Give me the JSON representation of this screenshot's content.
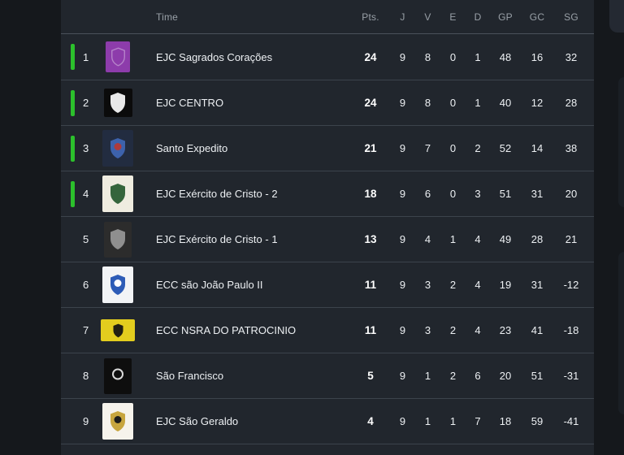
{
  "page": {
    "background": "#15181c"
  },
  "colors": {
    "card_bg": "#21262d",
    "divider": "#3c434b",
    "header_divider": "#4a515a",
    "header_text": "#99a0a7",
    "text": "#edf0f3",
    "promotion_bar": "#2cc02c",
    "corner_panel": "#242932"
  },
  "table": {
    "header": {
      "team_col_label": "Time",
      "stat_cols": [
        "Pts.",
        "J",
        "V",
        "E",
        "D",
        "GP",
        "GC",
        "SG"
      ]
    },
    "rows": [
      {
        "position": "1",
        "team": "EJC Sagrados Corações",
        "promoted": true,
        "badge": {
          "shape": "tall-sm",
          "bg": "#8d3cab",
          "crest": "#b583c9",
          "outline": true,
          "accent": null,
          "ring": false
        },
        "stats": {
          "pts": "24",
          "j": "9",
          "v": "8",
          "e": "0",
          "d": "1",
          "gp": "48",
          "gc": "16",
          "sg": "32"
        }
      },
      {
        "position": "2",
        "team": "EJC CENTRO",
        "promoted": true,
        "badge": {
          "shape": "square",
          "bg": "#0b0b0b",
          "crest": "#e9e9e9",
          "outline": false,
          "accent": null,
          "ring": false
        },
        "stats": {
          "pts": "24",
          "j": "9",
          "v": "8",
          "e": "0",
          "d": "1",
          "gp": "40",
          "gc": "12",
          "sg": "28"
        }
      },
      {
        "position": "3",
        "team": "Santo Expedito",
        "promoted": true,
        "badge": {
          "shape": "tall",
          "bg": "#222c40",
          "crest": "#3d62ac",
          "outline": false,
          "accent": "#b03a3a",
          "ring": false
        },
        "stats": {
          "pts": "21",
          "j": "9",
          "v": "7",
          "e": "0",
          "d": "2",
          "gp": "52",
          "gc": "14",
          "sg": "38"
        }
      },
      {
        "position": "4",
        "team": "EJC Exército de Cristo - 2",
        "promoted": true,
        "badge": {
          "shape": "tall",
          "bg": "#efece0",
          "crest": "#35653c",
          "outline": false,
          "accent": null,
          "ring": false
        },
        "stats": {
          "pts": "18",
          "j": "9",
          "v": "6",
          "e": "0",
          "d": "3",
          "gp": "51",
          "gc": "31",
          "sg": "20"
        }
      },
      {
        "position": "5",
        "team": "EJC Exército de Cristo - 1",
        "promoted": false,
        "badge": {
          "shape": "narrow-tall",
          "bg": "#2c2c2c",
          "crest": "#8f8f8f",
          "outline": false,
          "accent": null,
          "ring": false
        },
        "stats": {
          "pts": "13",
          "j": "9",
          "v": "4",
          "e": "1",
          "d": "4",
          "gp": "49",
          "gc": "28",
          "sg": "21"
        }
      },
      {
        "position": "6",
        "team": "ECC são João Paulo II",
        "promoted": false,
        "badge": {
          "shape": "tall",
          "bg": "#f2f4f6",
          "crest": "#2d5cb7",
          "outline": false,
          "accent": "#ffffff",
          "ring": false
        },
        "stats": {
          "pts": "11",
          "j": "9",
          "v": "3",
          "e": "2",
          "d": "4",
          "gp": "19",
          "gc": "31",
          "sg": "-12"
        }
      },
      {
        "position": "7",
        "team": "ECC NSRA DO PATROCINIO",
        "promoted": false,
        "badge": {
          "shape": "wide",
          "bg": "#e3cd1e",
          "crest": "#211f12",
          "outline": false,
          "accent": null,
          "ring": false
        },
        "stats": {
          "pts": "11",
          "j": "9",
          "v": "3",
          "e": "2",
          "d": "4",
          "gp": "23",
          "gc": "41",
          "sg": "-18"
        }
      },
      {
        "position": "8",
        "team": "São Francisco",
        "promoted": false,
        "badge": {
          "shape": "narrow-tall",
          "bg": "#0e0e0e",
          "crest": null,
          "outline": false,
          "accent": "#d9d9d9",
          "ring": true
        },
        "stats": {
          "pts": "5",
          "j": "9",
          "v": "1",
          "e": "2",
          "d": "6",
          "gp": "20",
          "gc": "51",
          "sg": "-31"
        }
      },
      {
        "position": "9",
        "team": "EJC São Geraldo",
        "promoted": false,
        "badge": {
          "shape": "tall",
          "bg": "#f6f3ec",
          "crest": "#c7a53e",
          "outline": false,
          "accent": "#1c1c1c",
          "ring": false
        },
        "stats": {
          "pts": "4",
          "j": "9",
          "v": "1",
          "e": "1",
          "d": "7",
          "gp": "18",
          "gc": "59",
          "sg": "-41"
        }
      }
    ]
  }
}
